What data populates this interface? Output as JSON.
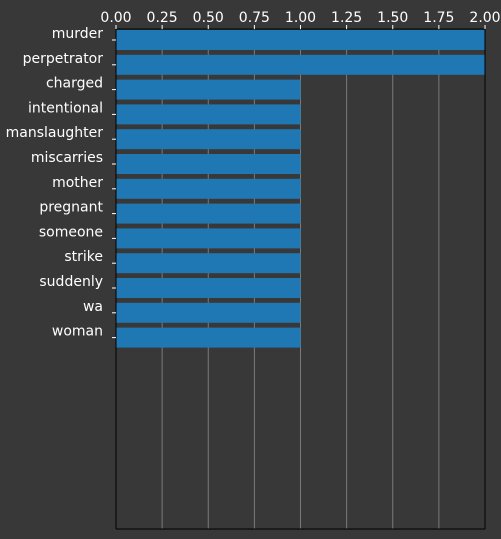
{
  "chart_data": {
    "type": "bar",
    "orientation": "horizontal",
    "categories": [
      "murder",
      "perpetrator",
      "charged",
      "intentional",
      "manslaughter",
      "miscarries",
      "mother",
      "pregnant",
      "someone",
      "strike",
      "suddenly",
      "wa",
      "woman"
    ],
    "values": [
      2,
      2,
      1,
      1,
      1,
      1,
      1,
      1,
      1,
      1,
      1,
      1,
      1
    ],
    "xlim": [
      0,
      2
    ],
    "xticks": [
      "0.00",
      "0.25",
      "0.50",
      "0.75",
      "1.00",
      "1.25",
      "1.50",
      "1.75",
      "2.00"
    ],
    "x_axis_position": "top",
    "grid": "vertical",
    "title": "",
    "xlabel": "",
    "ylabel": "",
    "bar_color": "#1f77b4",
    "background_color": "#383838",
    "grid_color": "#7a7a7a",
    "text_color": "#ffffff"
  }
}
